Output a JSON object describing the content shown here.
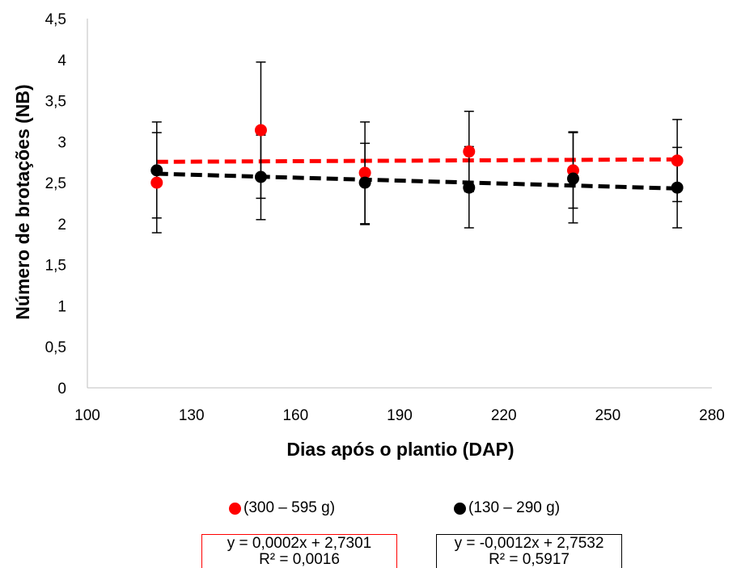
{
  "chart_data": {
    "type": "scatter",
    "xlabel": "Dias após o plantio (DAP)",
    "ylabel": "Número de brotações (NB)",
    "xlim": [
      100,
      280
    ],
    "ylim": [
      0,
      4.5
    ],
    "x_ticks": [
      "100",
      "130",
      "160",
      "190",
      "220",
      "250",
      "280"
    ],
    "y_ticks": [
      "0",
      "0,5",
      "1",
      "1,5",
      "2",
      "2,5",
      "3",
      "3,5",
      "4",
      "4,5"
    ],
    "grid": false,
    "legend_position": "bottom",
    "series": [
      {
        "name": "(300 – 595 g)",
        "color": "#ff0000",
        "x": [
          120,
          150,
          180,
          210,
          240,
          270
        ],
        "y": [
          2.5,
          3.14,
          2.62,
          2.88,
          2.65,
          2.77
        ],
        "error_low": [
          1.89,
          2.31,
          2.0,
          2.39,
          2.19,
          2.27
        ],
        "error_high": [
          3.11,
          3.97,
          3.24,
          3.37,
          3.11,
          3.27
        ],
        "trendline": {
          "slope": 0.0002,
          "intercept": 2.7301,
          "equation": "y = 0,0002x + 2,7301",
          "r2": "R² = 0,0016"
        }
      },
      {
        "name": "(130 – 290 g)",
        "color": "#000000",
        "x": [
          120,
          150,
          180,
          210,
          240,
          270
        ],
        "y": [
          2.65,
          2.57,
          2.5,
          2.44,
          2.55,
          2.44
        ],
        "error_low": [
          2.07,
          2.05,
          1.99,
          1.95,
          2.01,
          1.95
        ],
        "error_high": [
          3.24,
          3.08,
          2.98,
          2.94,
          3.12,
          2.93
        ],
        "trendline": {
          "slope": -0.0012,
          "intercept": 2.7532,
          "equation": "y = -0,0012x + 2,7532",
          "r2": "R² = 0,5917"
        }
      }
    ]
  }
}
